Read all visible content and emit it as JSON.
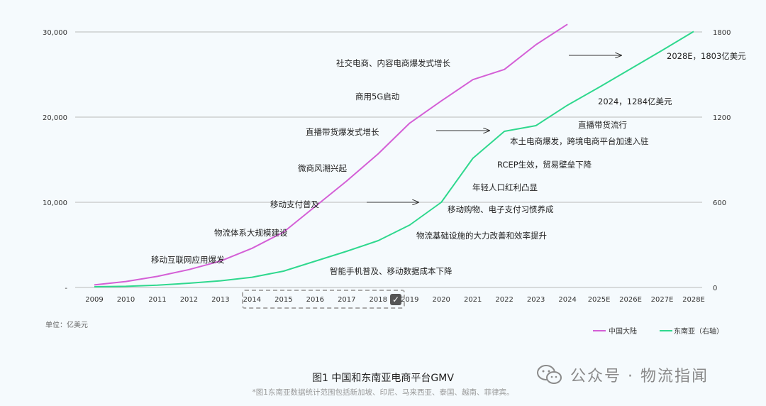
{
  "chart_data": {
    "type": "line",
    "title": "图1 中国和东南亚电商平台GMV",
    "footnote": "*图1东南亚数据统计范围包括新加坡、印尼、马来西亚、泰国、越南、菲律宾。",
    "unit_label": "单位：亿美元",
    "categories": [
      "2009",
      "2010",
      "2011",
      "2012",
      "2013",
      "2014",
      "2015",
      "2016",
      "2017",
      "2018",
      "2019",
      "2020",
      "2021",
      "2022",
      "2023",
      "2024",
      "2025E",
      "2026E",
      "2027E",
      "2028E"
    ],
    "left_axis": {
      "ticks": [
        "-",
        "10,000",
        "20,000",
        "30,000"
      ],
      "values": [
        0,
        10000,
        20000,
        30000
      ],
      "ylim": [
        0,
        30000
      ]
    },
    "right_axis": {
      "ticks": [
        "0",
        "600",
        "1200",
        "1800"
      ],
      "values": [
        0,
        600,
        1200,
        1800
      ],
      "ylim": [
        0,
        1800
      ]
    },
    "grid": true,
    "legend_position": "bottom-right",
    "series": [
      {
        "name": "中国大陆",
        "axis": "left",
        "color": "#d45fd6",
        "values": [
          300,
          700,
          1300,
          2100,
          3100,
          4600,
          6500,
          9500,
          12500,
          15700,
          19300,
          21900,
          24400,
          25600,
          28500,
          30900,
          null,
          null,
          null,
          null
        ]
      },
      {
        "name": "东南亚（右轴）",
        "axis": "right",
        "color": "#2fd88e",
        "values": [
          5,
          8,
          16,
          30,
          47,
          72,
          115,
          185,
          255,
          330,
          440,
          600,
          910,
          1100,
          1140,
          1284,
          1410,
          1540,
          1670,
          1803
        ]
      }
    ],
    "annotations": [
      {
        "text": "移动互联网应用爆发",
        "series": "中国大陆"
      },
      {
        "text": "物流体系大规模建设",
        "series": "中国大陆"
      },
      {
        "text": "移动支付普及",
        "series": "中国大陆"
      },
      {
        "text": "微商风潮兴起",
        "series": "中国大陆"
      },
      {
        "text": "直播带货爆发式增长",
        "series": "中国大陆"
      },
      {
        "text": "商用5G启动",
        "series": "中国大陆"
      },
      {
        "text": "社交电商、内容电商爆发式增长",
        "series": "中国大陆"
      },
      {
        "text": "智能手机普及、移动数据成本下降",
        "series": "东南亚（右轴）"
      },
      {
        "text": "物流基础设施的大力改善和效率提升",
        "series": "东南亚（右轴）"
      },
      {
        "text": "移动购物、电子支付习惯养成",
        "series": "东南亚（右轴）"
      },
      {
        "text": "年轻人口红利凸显",
        "series": "东南亚（右轴）"
      },
      {
        "text": "RCEP生效，贸易壁垒下降",
        "series": "东南亚（右轴）"
      },
      {
        "text": "本土电商爆发，跨境电商平台加速入驻",
        "series": "东南亚（右轴）"
      },
      {
        "text": "直播带货流行",
        "series": "东南亚（右轴）"
      },
      {
        "text": "2024，1284亿美元",
        "series": "东南亚（右轴）"
      },
      {
        "text": "2028E，1803亿美元",
        "series": "东南亚（右轴）"
      }
    ]
  },
  "watermark": {
    "text": "公众号 · 物流指闻",
    "icon": "wechat-logo-icon"
  },
  "selection_check_icon": "check-icon"
}
